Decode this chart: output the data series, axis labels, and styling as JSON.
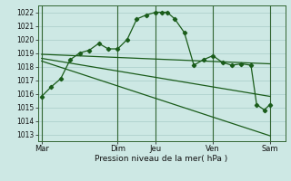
{
  "background_color": "#cde8e4",
  "grid_color": "#a8ccc8",
  "line_color": "#1a5c1a",
  "marker_color": "#1a5c1a",
  "xlabel": "Pression niveau de la mer( hPa )",
  "ylim": [
    1012.5,
    1022.5
  ],
  "yticks": [
    1013,
    1014,
    1015,
    1016,
    1017,
    1018,
    1019,
    1020,
    1021,
    1022
  ],
  "x_day_labels": [
    "Mar",
    "",
    "Dim",
    "Jeu",
    "",
    "Ven",
    "",
    "Sam"
  ],
  "x_day_positions": [
    0,
    2,
    4,
    6,
    8,
    9,
    10.5,
    12
  ],
  "xlim": [
    -0.2,
    12.8
  ],
  "series1_x": [
    0,
    0.5,
    1,
    1.5,
    2,
    2.5,
    3,
    3.5,
    4,
    4.5,
    5,
    5.5,
    6,
    6.3,
    6.6,
    7,
    7.5,
    8,
    8.5,
    9,
    9.5,
    10,
    10.5,
    11,
    11.3,
    11.7,
    12
  ],
  "series1_y": [
    1015.8,
    1016.5,
    1017.1,
    1018.5,
    1019.0,
    1019.2,
    1019.7,
    1019.3,
    1019.3,
    1020.0,
    1021.5,
    1021.8,
    1022.0,
    1022.0,
    1022.0,
    1021.5,
    1020.5,
    1018.1,
    1018.5,
    1018.8,
    1018.3,
    1018.1,
    1018.2,
    1018.1,
    1015.2,
    1014.8,
    1015.2
  ],
  "series2_x": [
    0,
    12
  ],
  "series2_y": [
    1018.9,
    1018.2
  ],
  "series3_x": [
    0,
    12
  ],
  "series3_y": [
    1018.6,
    1015.8
  ],
  "series4_x": [
    0,
    12
  ],
  "series4_y": [
    1018.4,
    1012.9
  ],
  "vline_x": [
    0,
    4,
    6,
    9,
    12
  ],
  "vline_color": "#336633",
  "figsize": [
    3.2,
    2.0
  ],
  "dpi": 100
}
